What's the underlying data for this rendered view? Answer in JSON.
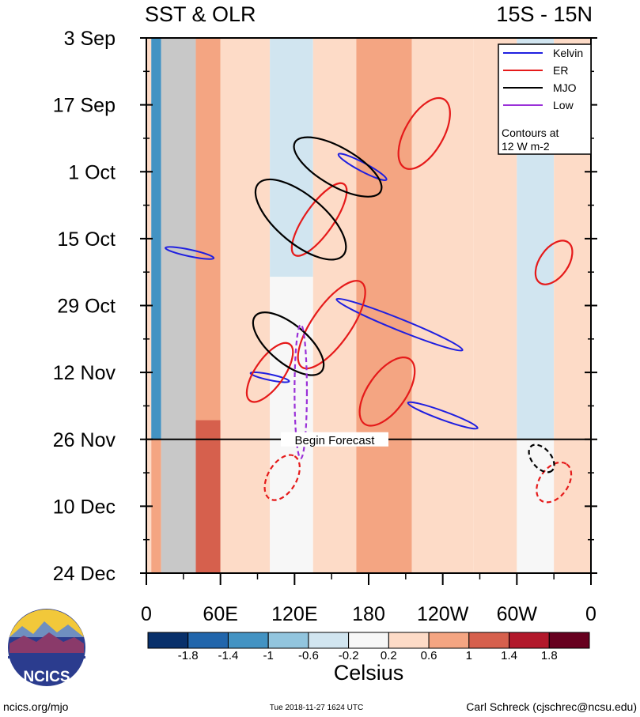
{
  "chart_data": {
    "type": "heatmap",
    "title_left": "SST & OLR",
    "title_right": "15S - 15N",
    "x_tick_labels": [
      "0",
      "60E",
      "120E",
      "180",
      "120W",
      "60W",
      "0"
    ],
    "x_tick_longitudes": [
      0,
      60,
      120,
      180,
      240,
      300,
      360
    ],
    "y_tick_labels": [
      "3 Sep",
      "17 Sep",
      "1 Oct",
      "15 Oct",
      "29 Oct",
      "12 Nov",
      "26 Nov",
      "10 Dec",
      "24 Dec"
    ],
    "y_tick_days": [
      0,
      14,
      28,
      42,
      56,
      70,
      84,
      98,
      112
    ],
    "forecast_day": 84,
    "forecast_label": "Begin Forecast",
    "legend": [
      {
        "name": "Kelvin",
        "color": "#1f1fe0"
      },
      {
        "name": "ER",
        "color": "#e51a1a"
      },
      {
        "name": "MJO",
        "color": "#000000"
      },
      {
        "name": "Low",
        "color": "#9a30d8"
      }
    ],
    "legend_note": "Contours at\n12 W m-2",
    "legend_position": "top-right",
    "colorbar": {
      "label": "Celsius",
      "tick_labels": [
        "-1.8",
        "-1.4",
        "-1",
        "-0.6",
        "-0.2",
        "0.2",
        "0.6",
        "1",
        "1.4",
        "1.8"
      ],
      "colors": [
        "#08306b",
        "#2166ac",
        "#4393c3",
        "#92c5de",
        "#d1e5f0",
        "#f7f7f7",
        "#fddbc7",
        "#f4a582",
        "#d6604d",
        "#b2182b",
        "#67001f"
      ]
    },
    "land_mask_lon_range": [
      12,
      40
    ],
    "sst_bands": [
      {
        "lon": [
          0,
          4
        ],
        "day": [
          0,
          112
        ],
        "v": 0.3
      },
      {
        "lon": [
          4,
          12
        ],
        "day": [
          0,
          84
        ],
        "v": -1.4
      },
      {
        "lon": [
          4,
          12
        ],
        "day": [
          84,
          112
        ],
        "v": 0.6
      },
      {
        "lon": [
          40,
          60
        ],
        "day": [
          0,
          112
        ],
        "v": 0.7
      },
      {
        "lon": [
          40,
          60
        ],
        "day": [
          80,
          112
        ],
        "v": 1.1
      },
      {
        "lon": [
          60,
          100
        ],
        "day": [
          0,
          112
        ],
        "v": 0.2
      },
      {
        "lon": [
          100,
          135
        ],
        "day": [
          0,
          50
        ],
        "v": -0.4
      },
      {
        "lon": [
          100,
          135
        ],
        "day": [
          50,
          112
        ],
        "v": 0.1
      },
      {
        "lon": [
          135,
          170
        ],
        "day": [
          0,
          112
        ],
        "v": 0.3
      },
      {
        "lon": [
          170,
          215
        ],
        "day": [
          0,
          112
        ],
        "v": 0.9
      },
      {
        "lon": [
          215,
          265
        ],
        "day": [
          0,
          112
        ],
        "v": 0.5
      },
      {
        "lon": [
          265,
          300
        ],
        "day": [
          0,
          112
        ],
        "v": 0.3
      },
      {
        "lon": [
          300,
          330
        ],
        "day": [
          0,
          84
        ],
        "v": -0.3
      },
      {
        "lon": [
          300,
          330
        ],
        "day": [
          84,
          112
        ],
        "v": 0.1
      },
      {
        "lon": [
          330,
          360
        ],
        "day": [
          0,
          112
        ],
        "v": 0.5
      }
    ],
    "contours": [
      {
        "type": "Kelvin",
        "lon": 205,
        "day": 60,
        "rx": 55,
        "ry": 1.2,
        "ang": 22
      },
      {
        "type": "Kelvin",
        "lon": 175,
        "day": 27,
        "rx": 22,
        "ry": 0.9,
        "ang": 28
      },
      {
        "type": "Kelvin",
        "lon": 240,
        "day": 79,
        "rx": 30,
        "ry": 0.9,
        "ang": 20
      },
      {
        "type": "Kelvin",
        "lon": 35,
        "day": 45,
        "rx": 20,
        "ry": 0.7,
        "ang": 12
      },
      {
        "type": "Kelvin",
        "lon": 100,
        "day": 71,
        "rx": 16,
        "ry": 0.6,
        "ang": 12
      },
      {
        "type": "ER",
        "lon": 225,
        "day": 20,
        "rx": 32,
        "ry": 4,
        "ang": -60
      },
      {
        "type": "ER",
        "lon": 330,
        "day": 47,
        "rx": 20,
        "ry": 3,
        "ang": -55
      },
      {
        "type": "ER",
        "lon": 195,
        "day": 74,
        "rx": 32,
        "ry": 4,
        "ang": -55
      },
      {
        "type": "ER",
        "lon": 150,
        "day": 60,
        "rx": 42,
        "ry": 4,
        "ang": -55
      },
      {
        "type": "ER",
        "lon": 100,
        "day": 70,
        "rx": 28,
        "ry": 3,
        "ang": -55
      },
      {
        "type": "ER",
        "lon": 110,
        "day": 92,
        "rx": 20,
        "ry": 3,
        "ang": -60
      },
      {
        "type": "ER",
        "lon": 330,
        "day": 93,
        "rx": 18,
        "ry": 3,
        "ang": -55
      },
      {
        "type": "ER",
        "lon": 140,
        "day": 38,
        "rx": 35,
        "ry": 3,
        "ang": -55
      },
      {
        "type": "MJO",
        "lon": 125,
        "day": 38,
        "rx": 45,
        "ry": 5,
        "ang": 40
      },
      {
        "type": "MJO",
        "lon": 115,
        "day": 64,
        "rx": 35,
        "ry": 4,
        "ang": 40
      },
      {
        "type": "MJO",
        "lon": 155,
        "day": 27,
        "rx": 40,
        "ry": 4,
        "ang": 30
      },
      {
        "type": "MJO",
        "lon": 320,
        "day": 88,
        "rx": 13,
        "ry": 2,
        "ang": 50
      },
      {
        "type": "Low",
        "lon": 125,
        "day": 74,
        "rx": 5,
        "ry": 14,
        "ang": 0
      }
    ]
  }
}
